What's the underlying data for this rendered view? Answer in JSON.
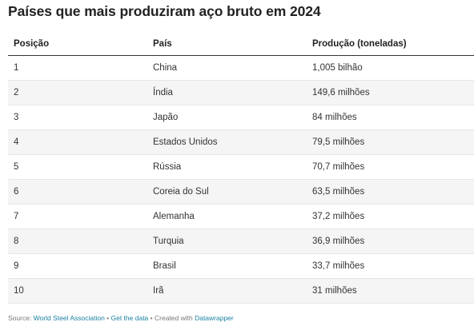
{
  "title": "Países que mais produziram aço bruto em 2024",
  "table": {
    "headers": [
      "Posição",
      "País",
      "Produção (toneladas)"
    ],
    "rows": [
      [
        "1",
        "China",
        "1,005 bilhão"
      ],
      [
        "2",
        "Índia",
        "149,6 milhões"
      ],
      [
        "3",
        "Japão",
        "84 milhões"
      ],
      [
        "4",
        "Estados Unidos",
        "79,5 milhões"
      ],
      [
        "5",
        "Rússia",
        "70,7 milhões"
      ],
      [
        "6",
        "Coreia do Sul",
        "63,5 milhões"
      ],
      [
        "7",
        "Alemanha",
        "37,2 milhões"
      ],
      [
        "8",
        "Turquia",
        "36,9 milhões"
      ],
      [
        "9",
        "Brasil",
        "33,7 milhões"
      ],
      [
        "10",
        "Irã",
        "31 milhões"
      ]
    ]
  },
  "footer": {
    "source_label": "Source: ",
    "source_link": "World Steel Association",
    "sep1": " • ",
    "get_data": "Get the data",
    "sep2": " • Created with ",
    "created_with": "Datawrapper"
  },
  "colors": {
    "link": "#1d81a2",
    "zebra": "#f5f5f5",
    "header_rule": "#333333"
  }
}
